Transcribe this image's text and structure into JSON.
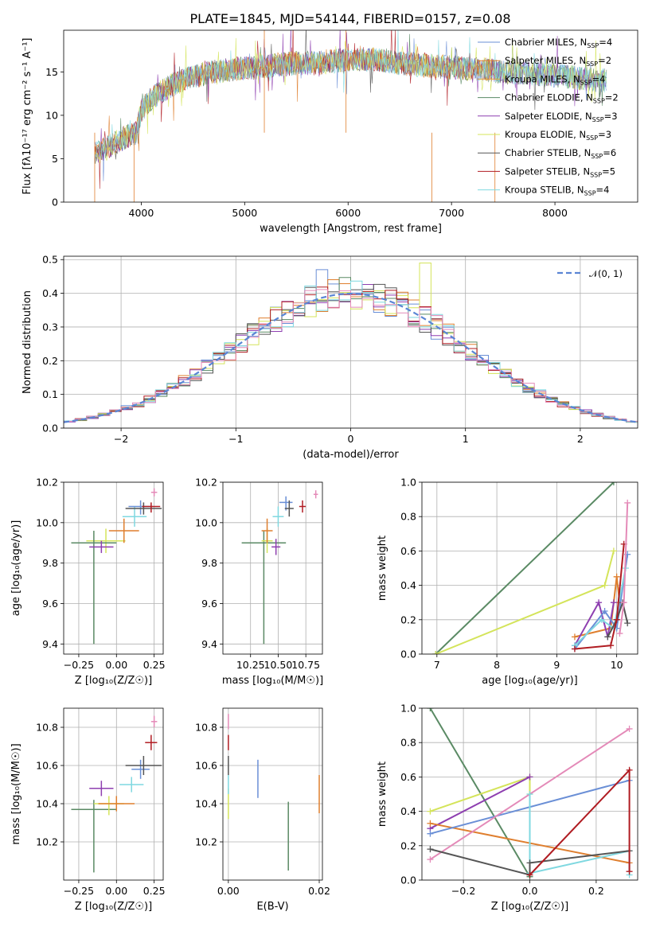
{
  "title": "PLATE=1845, MJD=54144, FIBERID=0157, z=0.08",
  "colors": {
    "Chabrier MILES": "#6a8fd6",
    "Salpeter MILES": "#df7f2f",
    "Kroupa MILES": "#e8a23a",
    "Chabrier ELODIE": "#5a8a64",
    "Salpeter ELODIE": "#8e3fb0",
    "Kroupa ELODIE": "#d4e45a",
    "Chabrier STELIB": "#555555",
    "Salpeter STELIB": "#b01c22",
    "Kroupa STELIB": "#7fd8e0",
    "Extra pink": "#e48ab8",
    "Normal": "#6a8fd6"
  },
  "chart_data": [
    {
      "id": "spectrum",
      "type": "line",
      "xlabel": "wavelength [Angstrom, rest frame]",
      "ylabel": "Flux [fλ10⁻¹⁷ erg cm⁻² s⁻¹ A⁻¹]",
      "xlim": [
        3250,
        8800
      ],
      "ylim": [
        0,
        19.8
      ],
      "xticks": [
        4000,
        5000,
        6000,
        7000,
        8000
      ],
      "yticks": [
        0,
        5,
        10,
        15
      ],
      "grid": false,
      "legend_position": "right",
      "continuum": {
        "x": [
          3550,
          3700,
          3850,
          3950,
          4000,
          4100,
          4300,
          4500,
          4700,
          4900,
          5100,
          5300,
          5500,
          5700,
          5900,
          6100,
          6300,
          6500,
          6700,
          6900,
          7100,
          7300,
          7500,
          7700,
          7900,
          8100,
          8300,
          8500
        ],
        "y": [
          5.5,
          6.5,
          7.5,
          8.0,
          10.5,
          12.0,
          13.5,
          14.5,
          15.0,
          15.3,
          15.5,
          15.8,
          16.0,
          16.0,
          16.3,
          16.5,
          16.4,
          16.0,
          15.8,
          15.6,
          15.4,
          15.3,
          15.0,
          14.9,
          14.7,
          14.5,
          14.2,
          14.0
        ]
      },
      "legend": [
        {
          "label": "Chabrier MILES, N",
          "sub": "SSP",
          "tail": "=4",
          "color": "#6a8fd6"
        },
        {
          "label": "Salpeter MILES, N",
          "sub": "SSP",
          "tail": "=2",
          "color": "#df7f2f"
        },
        {
          "label": "Kroupa MILES, N",
          "sub": "SSP",
          "tail": "=4",
          "color": "#e8a23a"
        },
        {
          "label": "Chabrier ELODIE, N",
          "sub": "SSP",
          "tail": "=2",
          "color": "#5a8a64"
        },
        {
          "label": "Salpeter ELODIE, N",
          "sub": "SSP",
          "tail": "=3",
          "color": "#8e3fb0"
        },
        {
          "label": "Kroupa ELODIE, N",
          "sub": "SSP",
          "tail": "=3",
          "color": "#d4e45a"
        },
        {
          "label": "Chabrier STELIB, N",
          "sub": "SSP",
          "tail": "=6",
          "color": "#555555"
        },
        {
          "label": "Salpeter STELIB, N",
          "sub": "SSP",
          "tail": "=5",
          "color": "#b01c22"
        },
        {
          "label": "Kroupa STELIB, N",
          "sub": "SSP",
          "tail": "=4",
          "color": "#7fd8e0"
        }
      ]
    },
    {
      "id": "residuals",
      "type": "bar",
      "xlabel": "(data-model)/error",
      "ylabel": "Normed distribution",
      "xlim": [
        -2.5,
        2.5
      ],
      "ylim": [
        0,
        0.51
      ],
      "xticks": [
        -2,
        -1,
        0,
        1,
        2
      ],
      "yticks": [
        0.0,
        0.1,
        0.2,
        0.3,
        0.4,
        0.5
      ],
      "grid": true,
      "legend_label": "𝒩(0, 1)",
      "legend_position": "top-right",
      "series_colors": [
        "#6a8fd6",
        "#df7f2f",
        "#5a8a64",
        "#8e3fb0",
        "#d4e45a",
        "#555555",
        "#b01c22",
        "#7fd8e0",
        "#e48ab8"
      ]
    },
    {
      "id": "age-vs-Z",
      "type": "scatter",
      "xlabel": "Z [log₁₀(Z/Z☉)]",
      "ylabel": "age  [log₁₀(age/yr)]",
      "xlim": [
        -0.35,
        0.31
      ],
      "ylim": [
        9.35,
        10.2
      ],
      "xticks": [
        -0.25,
        0.0,
        0.25
      ],
      "xticklabels": [
        "−0.25",
        "0.00",
        "0.25"
      ],
      "yticks": [
        9.4,
        9.6,
        9.8,
        10.0,
        10.2
      ],
      "points": [
        {
          "x": -0.07,
          "y": 9.91,
          "dx": 0.13,
          "dy1": 0.06,
          "dy2": 0.06,
          "color": "#d4e45a"
        },
        {
          "x": -0.15,
          "y": 9.9,
          "dx": 0.15,
          "dy1": 0.5,
          "dy2": 0.06,
          "color": "#5a8a64"
        },
        {
          "x": -0.1,
          "y": 9.88,
          "dx": 0.08,
          "dy1": 0.03,
          "dy2": 0.03,
          "color": "#8e3fb0"
        },
        {
          "x": 0.05,
          "y": 9.96,
          "dx": 0.1,
          "dy1": 0.06,
          "dy2": 0.06,
          "color": "#df7f2f"
        },
        {
          "x": 0.12,
          "y": 10.03,
          "dx": 0.08,
          "dy1": 0.05,
          "dy2": 0.05,
          "color": "#7fd8e0"
        },
        {
          "x": 0.16,
          "y": 10.08,
          "dx": 0.08,
          "dy1": 0.04,
          "dy2": 0.03,
          "color": "#6a8fd6"
        },
        {
          "x": 0.18,
          "y": 10.07,
          "dx": 0.12,
          "dy1": 0.03,
          "dy2": 0.03,
          "color": "#555555"
        },
        {
          "x": 0.23,
          "y": 10.08,
          "dx": 0.06,
          "dy1": 0.03,
          "dy2": 0.02,
          "color": "#b01c22"
        },
        {
          "x": 0.25,
          "y": 10.15,
          "dx": 0.02,
          "dy1": 0.02,
          "dy2": 0.02,
          "color": "#e48ab8"
        }
      ]
    },
    {
      "id": "age-vs-mass",
      "type": "scatter",
      "xlabel": "mass [log₁₀(M/M☉)]",
      "ylabel": "",
      "xlim": [
        10.0,
        10.9
      ],
      "ylim": [
        9.35,
        10.2
      ],
      "xticks": [
        10.25,
        10.5,
        10.75
      ],
      "xticklabels": [
        "10.25",
        "10.50",
        "10.75"
      ],
      "yticks": [
        9.4,
        9.6,
        9.8,
        10.0,
        10.2
      ],
      "points": [
        {
          "x": 10.37,
          "y": 9.9,
          "dx": 0.2,
          "dy1": 0.5,
          "dy2": 0.06,
          "color": "#5a8a64"
        },
        {
          "x": 10.4,
          "y": 9.91,
          "dx": 0.05,
          "dy1": 0.06,
          "dy2": 0.06,
          "color": "#d4e45a"
        },
        {
          "x": 10.4,
          "y": 9.96,
          "dx": 0.05,
          "dy1": 0.06,
          "dy2": 0.06,
          "color": "#df7f2f"
        },
        {
          "x": 10.48,
          "y": 9.88,
          "dx": 0.04,
          "dy1": 0.04,
          "dy2": 0.04,
          "color": "#8e3fb0"
        },
        {
          "x": 10.5,
          "y": 10.03,
          "dx": 0.05,
          "dy1": 0.05,
          "dy2": 0.05,
          "color": "#7fd8e0"
        },
        {
          "x": 10.57,
          "y": 10.1,
          "dx": 0.06,
          "dy1": 0.04,
          "dy2": 0.03,
          "color": "#6a8fd6"
        },
        {
          "x": 10.6,
          "y": 10.07,
          "dx": 0.04,
          "dy1": 0.04,
          "dy2": 0.04,
          "color": "#555555"
        },
        {
          "x": 10.72,
          "y": 10.08,
          "dx": 0.03,
          "dy1": 0.03,
          "dy2": 0.03,
          "color": "#b01c22"
        },
        {
          "x": 10.84,
          "y": 10.14,
          "dx": 0.02,
          "dy1": 0.02,
          "dy2": 0.02,
          "color": "#e48ab8"
        }
      ]
    },
    {
      "id": "weight-vs-age",
      "type": "line",
      "xlabel": "age  [log₁₀(age/yr)]",
      "ylabel": "mass weight",
      "xlim": [
        6.75,
        10.35
      ],
      "ylim": [
        0,
        1.0
      ],
      "xticks": [
        7,
        8,
        9,
        10
      ],
      "yticks": [
        0.0,
        0.2,
        0.4,
        0.6,
        0.8,
        1.0
      ],
      "grid": true,
      "series": [
        {
          "color": "#5a8a64",
          "x": [
            6.98,
            9.95
          ],
          "y": [
            0.0,
            1.0
          ]
        },
        {
          "color": "#d4e45a",
          "x": [
            6.98,
            9.8,
            9.95
          ],
          "y": [
            0.0,
            0.4,
            0.6
          ]
        },
        {
          "color": "#df7f2f",
          "x": [
            9.3,
            9.9,
            10.0,
            10.05
          ],
          "y": [
            0.1,
            0.15,
            0.45,
            0.3
          ]
        },
        {
          "color": "#8e3fb0",
          "x": [
            9.3,
            9.7,
            9.85,
            9.95
          ],
          "y": [
            0.05,
            0.3,
            0.1,
            0.3
          ]
        },
        {
          "color": "#6a8fd6",
          "x": [
            9.3,
            9.8,
            10.0,
            10.18
          ],
          "y": [
            0.03,
            0.25,
            0.15,
            0.58
          ]
        },
        {
          "color": "#7fd8e0",
          "x": [
            9.3,
            9.75,
            9.95,
            10.15
          ],
          "y": [
            0.05,
            0.2,
            0.15,
            0.5
          ]
        },
        {
          "color": "#555555",
          "x": [
            9.85,
            10.0,
            10.1,
            10.18
          ],
          "y": [
            0.1,
            0.2,
            0.3,
            0.18
          ]
        },
        {
          "color": "#b01c22",
          "x": [
            9.3,
            9.9,
            10.0,
            10.12
          ],
          "y": [
            0.03,
            0.05,
            0.2,
            0.64
          ]
        },
        {
          "color": "#e48ab8",
          "x": [
            10.05,
            10.12,
            10.18
          ],
          "y": [
            0.12,
            0.3,
            0.88
          ]
        }
      ]
    },
    {
      "id": "mass-vs-Z",
      "type": "scatter",
      "xlabel": "Z [log₁₀(Z/Z☉)]",
      "ylabel": "mass [log₁₀(M/M☉)]",
      "xlim": [
        -0.35,
        0.31
      ],
      "ylim": [
        10.0,
        10.9
      ],
      "xticks": [
        -0.25,
        0.0,
        0.25
      ],
      "xticklabels": [
        "−0.25",
        "0.00",
        "0.25"
      ],
      "yticks": [
        10.2,
        10.4,
        10.6,
        10.8
      ],
      "points": [
        {
          "x": -0.15,
          "y": 10.37,
          "dx": 0.15,
          "dy1": 0.33,
          "dy2": 0.05,
          "color": "#5a8a64"
        },
        {
          "x": -0.05,
          "y": 10.4,
          "dx": 0.1,
          "dy1": 0.06,
          "dy2": 0.04,
          "color": "#d4e45a"
        },
        {
          "x": 0.0,
          "y": 10.4,
          "dx": 0.12,
          "dy1": 0.04,
          "dy2": 0.04,
          "color": "#df7f2f"
        },
        {
          "x": -0.1,
          "y": 10.48,
          "dx": 0.08,
          "dy1": 0.04,
          "dy2": 0.04,
          "color": "#8e3fb0"
        },
        {
          "x": 0.1,
          "y": 10.5,
          "dx": 0.08,
          "dy1": 0.04,
          "dy2": 0.04,
          "color": "#7fd8e0"
        },
        {
          "x": 0.16,
          "y": 10.58,
          "dx": 0.06,
          "dy1": 0.05,
          "dy2": 0.05,
          "color": "#6a8fd6"
        },
        {
          "x": 0.18,
          "y": 10.6,
          "dx": 0.12,
          "dy1": 0.05,
          "dy2": 0.05,
          "color": "#555555"
        },
        {
          "x": 0.23,
          "y": 10.72,
          "dx": 0.04,
          "dy1": 0.04,
          "dy2": 0.04,
          "color": "#b01c22"
        },
        {
          "x": 0.25,
          "y": 10.83,
          "dx": 0.02,
          "dy1": 0.03,
          "dy2": 0.03,
          "color": "#e48ab8"
        }
      ]
    },
    {
      "id": "mass-vs-EBV",
      "type": "scatter",
      "xlabel": "E(B-V)",
      "ylabel": "",
      "xlim": [
        -0.0012,
        0.0207
      ],
      "ylim": [
        10.0,
        10.9
      ],
      "xticks": [
        0.0,
        0.02
      ],
      "xticklabels": [
        "0.00",
        "0.02"
      ],
      "yticks": [
        10.2,
        10.4,
        10.6,
        10.8
      ],
      "points": [
        {
          "x": 0.0,
          "y": 10.4,
          "dx": 0,
          "dy1": 0.08,
          "dy2": 0.08,
          "color": "#d4e45a"
        },
        {
          "x": 0.0,
          "y": 10.5,
          "dx": 0,
          "dy1": 0.05,
          "dy2": 0.05,
          "color": "#7fd8e0"
        },
        {
          "x": 0.0,
          "y": 10.6,
          "dx": 0,
          "dy1": 0.05,
          "dy2": 0.05,
          "color": "#555555"
        },
        {
          "x": 0.0,
          "y": 10.72,
          "dx": 0,
          "dy1": 0.04,
          "dy2": 0.04,
          "color": "#b01c22"
        },
        {
          "x": 0.0,
          "y": 10.83,
          "dx": 0,
          "dy1": 0.04,
          "dy2": 0.04,
          "color": "#e48ab8"
        },
        {
          "x": 0.0065,
          "y": 10.53,
          "dx": 0,
          "dy1": 0.1,
          "dy2": 0.1,
          "color": "#6a8fd6"
        },
        {
          "x": 0.0132,
          "y": 10.23,
          "dx": 0,
          "dy1": 0.18,
          "dy2": 0.18,
          "color": "#5a8a64"
        },
        {
          "x": 0.02,
          "y": 10.45,
          "dx": 0,
          "dy1": 0.1,
          "dy2": 0.1,
          "color": "#df7f2f"
        }
      ]
    },
    {
      "id": "weight-vs-Z",
      "type": "line",
      "xlabel": "Z [log₁₀(Z/Z☉)]",
      "ylabel": "mass weight",
      "xlim": [
        -0.325,
        0.325
      ],
      "ylim": [
        0,
        1.0
      ],
      "xticks": [
        -0.2,
        0.0,
        0.2
      ],
      "xticklabels": [
        "−0.2",
        "0.0",
        "0.2"
      ],
      "yticks": [
        0.0,
        0.2,
        0.4,
        0.6,
        0.8,
        1.0
      ],
      "grid": true,
      "series": [
        {
          "color": "#5a8a64",
          "x": [
            -0.3,
            0.0
          ],
          "y": [
            1.0,
            0.02
          ]
        },
        {
          "color": "#d4e45a",
          "x": [
            -0.3,
            0.0,
            0.0
          ],
          "y": [
            0.4,
            0.6,
            0.5
          ]
        },
        {
          "color": "#8e3fb0",
          "x": [
            -0.3,
            0.0
          ],
          "y": [
            0.3,
            0.6
          ]
        },
        {
          "color": "#df7f2f",
          "x": [
            -0.3,
            0.3
          ],
          "y": [
            0.33,
            0.1
          ]
        },
        {
          "color": "#6a8fd6",
          "x": [
            -0.3,
            0.3
          ],
          "y": [
            0.27,
            0.58
          ]
        },
        {
          "color": "#e48ab8",
          "x": [
            -0.3,
            0.3
          ],
          "y": [
            0.12,
            0.88
          ]
        },
        {
          "color": "#7fd8e0",
          "x": [
            0.0,
            0.0,
            0.3,
            0.3
          ],
          "y": [
            0.5,
            0.04,
            0.17,
            0.03
          ]
        },
        {
          "color": "#555555",
          "x": [
            -0.3,
            0.0,
            0.0,
            0.3
          ],
          "y": [
            0.18,
            0.03,
            0.1,
            0.17
          ]
        },
        {
          "color": "#b01c22",
          "x": [
            0.0,
            0.3,
            0.3
          ],
          "y": [
            0.03,
            0.64,
            0.05
          ]
        }
      ]
    }
  ]
}
